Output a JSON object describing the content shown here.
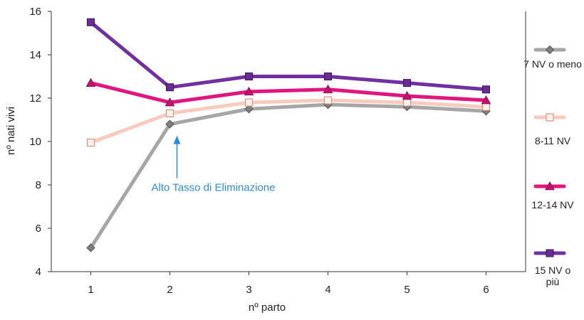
{
  "chart_data": {
    "type": "line",
    "xlabel": "nº parto",
    "ylabel": "nº nati vivi",
    "x": [
      1,
      2,
      3,
      4,
      5,
      6
    ],
    "ylim": [
      4,
      16
    ],
    "yticks": [
      4,
      6,
      8,
      10,
      12,
      14,
      16
    ],
    "grid": false,
    "legend_position": "right",
    "series": [
      {
        "name": "7 NV o meno",
        "values": [
          5.1,
          10.8,
          11.5,
          11.7,
          11.6,
          11.4
        ],
        "color": "#a6a6a6",
        "marker": "diamond",
        "marker_fill": "#7f7f7f"
      },
      {
        "name": "8-11 NV",
        "values": [
          9.95,
          11.3,
          11.8,
          11.9,
          11.8,
          11.6
        ],
        "color": "#f8cbbf",
        "marker": "square-open",
        "marker_fill": "#fff3ef"
      },
      {
        "name": "12-14 NV",
        "values": [
          12.7,
          11.8,
          12.3,
          12.4,
          12.1,
          11.9
        ],
        "color": "#e0157e",
        "marker": "triangle",
        "marker_fill": "#c5116f"
      },
      {
        "name": "15 NV o più",
        "values": [
          15.5,
          12.5,
          13.0,
          13.0,
          12.7,
          12.4
        ],
        "color": "#7030a0",
        "marker": "square",
        "marker_fill": "#6a2c91"
      }
    ],
    "legend_labels": [
      [
        "7 NV o meno"
      ],
      [
        "8-11 NV"
      ],
      [
        "12-14 NV"
      ],
      [
        "15 NV o",
        "più"
      ]
    ],
    "annotations": [
      {
        "text": "Alto Tasso di Eliminazione",
        "x": 2,
        "y": 10.8,
        "color": "#2e8bd8"
      }
    ]
  }
}
